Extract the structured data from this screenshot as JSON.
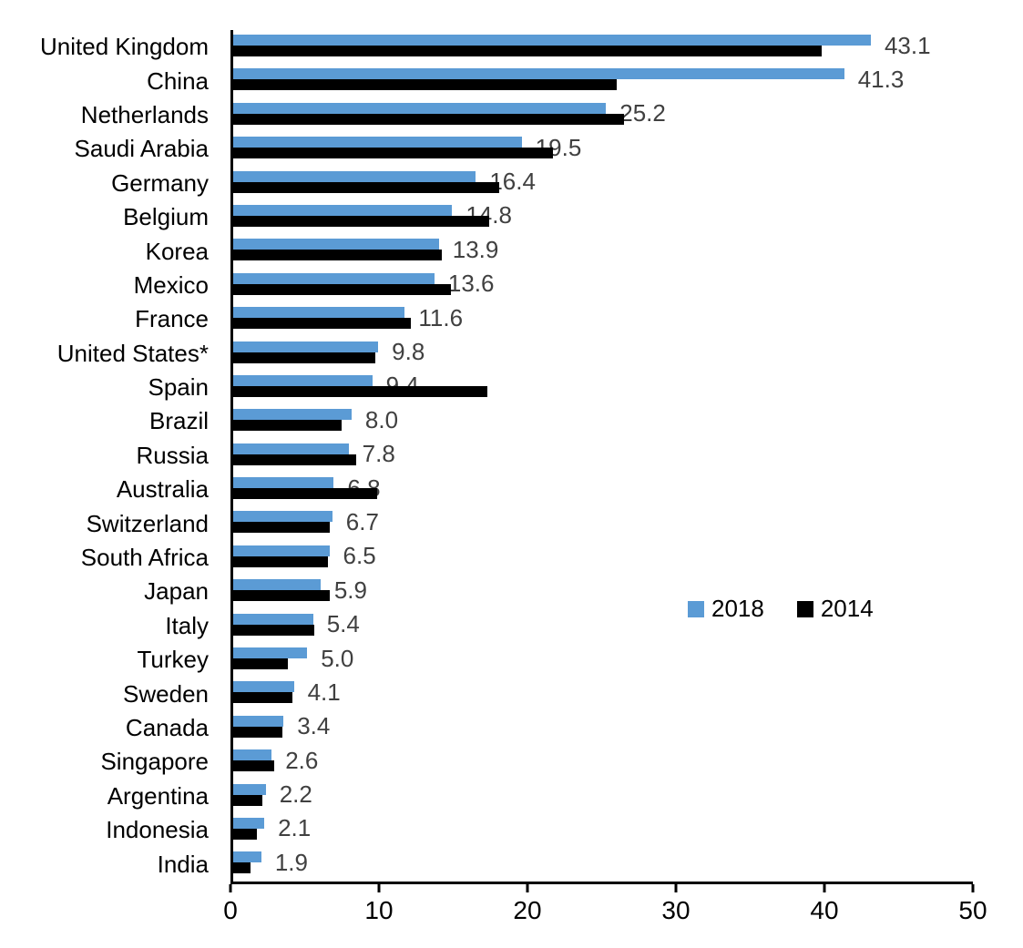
{
  "chart_data": {
    "type": "bar",
    "orientation": "horizontal",
    "title": "",
    "xlabel": "",
    "ylabel": "",
    "xlim": [
      0,
      50
    ],
    "xticks": [
      0,
      10,
      20,
      30,
      40,
      50
    ],
    "grid": false,
    "legend_position": "center-right",
    "value_label_color": "#404040",
    "categories": [
      "United Kingdom",
      "China",
      "Netherlands",
      "Saudi Arabia",
      "Germany",
      "Belgium",
      "Korea",
      "Mexico",
      "France",
      "United States*",
      "Spain",
      "Brazil",
      "Russia",
      "Australia",
      "Switzerland",
      "South Africa",
      "Japan",
      "Italy",
      "Turkey",
      "Sweden",
      "Canada",
      "Singapore",
      "Argentina",
      "Indonesia",
      "India"
    ],
    "series": [
      {
        "name": "2018",
        "color": "#5B9BD5",
        "data_labels_shown": true,
        "values": [
          43.1,
          41.3,
          25.2,
          19.5,
          16.4,
          14.8,
          13.9,
          13.6,
          11.6,
          9.8,
          9.4,
          8.0,
          7.8,
          6.8,
          6.7,
          6.5,
          5.9,
          5.4,
          5.0,
          4.1,
          3.4,
          2.6,
          2.2,
          2.1,
          1.9
        ]
      },
      {
        "name": "2014",
        "color": "#000000",
        "data_labels_shown": false,
        "values": [
          39.8,
          25.9,
          26.4,
          21.6,
          18.0,
          17.3,
          14.1,
          14.7,
          12.0,
          9.6,
          17.2,
          7.3,
          8.3,
          9.7,
          6.5,
          6.4,
          6.5,
          5.5,
          3.7,
          4.0,
          3.3,
          2.8,
          2.0,
          1.6,
          1.2
        ]
      }
    ]
  }
}
